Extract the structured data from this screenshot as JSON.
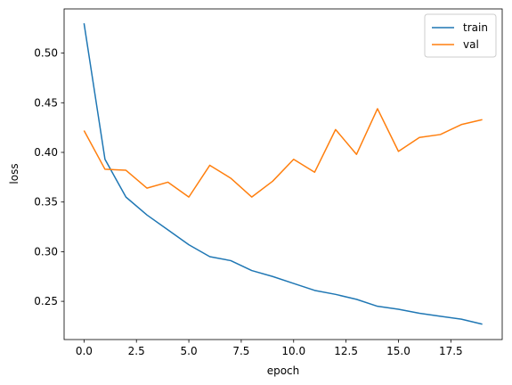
{
  "chart_data": {
    "type": "line",
    "title": "",
    "xlabel": "epoch",
    "ylabel": "loss",
    "xlim": [
      -0.95,
      19.95
    ],
    "ylim": [
      0.2115,
      0.5445
    ],
    "xticks": [
      0.0,
      2.5,
      5.0,
      7.5,
      10.0,
      12.5,
      15.0,
      17.5
    ],
    "xtick_labels": [
      "0.0",
      "2.5",
      "5.0",
      "7.5",
      "10.0",
      "12.5",
      "15.0",
      "17.5"
    ],
    "yticks": [
      0.25,
      0.3,
      0.35,
      0.4,
      0.45,
      0.5
    ],
    "ytick_labels": [
      "0.25",
      "0.30",
      "0.35",
      "0.40",
      "0.45",
      "0.50"
    ],
    "grid": false,
    "legend_position": "top-right",
    "x": [
      0,
      1,
      2,
      3,
      4,
      5,
      6,
      7,
      8,
      9,
      10,
      11,
      12,
      13,
      14,
      15,
      16,
      17,
      18,
      19
    ],
    "series": [
      {
        "name": "train",
        "color": "#1f77b4",
        "values": [
          0.53,
          0.393,
          0.355,
          0.337,
          0.322,
          0.307,
          0.295,
          0.291,
          0.281,
          0.275,
          0.268,
          0.261,
          0.257,
          0.252,
          0.245,
          0.242,
          0.238,
          0.235,
          0.232,
          0.227
        ]
      },
      {
        "name": "val",
        "color": "#ff7f0e",
        "values": [
          0.422,
          0.383,
          0.382,
          0.364,
          0.37,
          0.355,
          0.387,
          0.374,
          0.355,
          0.371,
          0.393,
          0.38,
          0.423,
          0.398,
          0.444,
          0.401,
          0.415,
          0.418,
          0.428,
          0.433
        ]
      }
    ]
  }
}
